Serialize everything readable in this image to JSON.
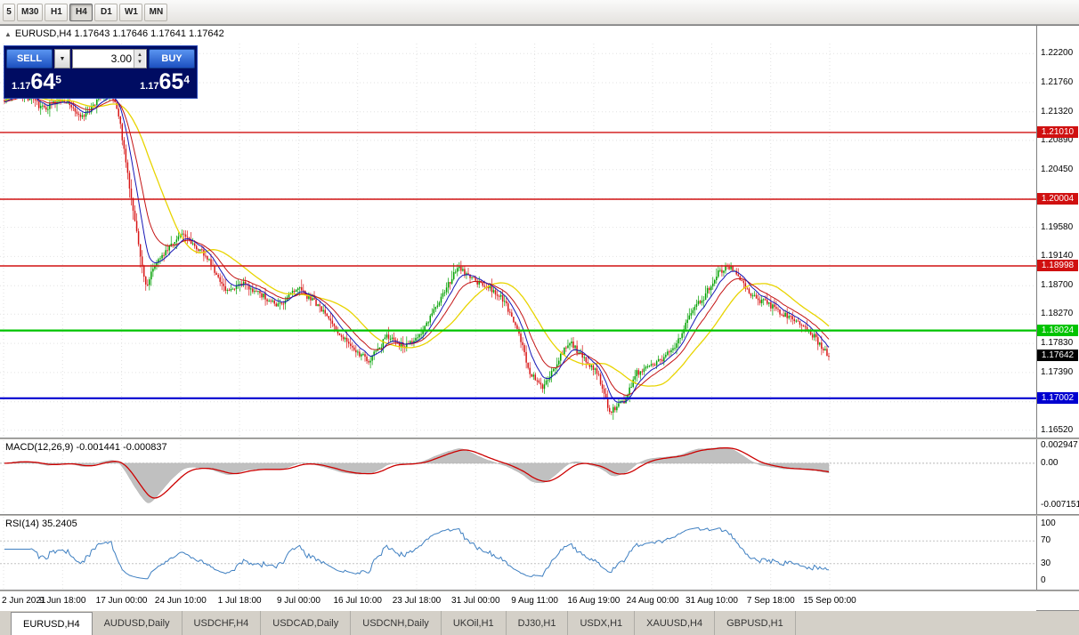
{
  "toolbar": {
    "timeframes": [
      "5",
      "M30",
      "H1",
      "H4",
      "D1",
      "W1",
      "MN"
    ],
    "active": "H4"
  },
  "header": {
    "symbol_line": "EURUSD,H4  1.17643 1.17646 1.17641 1.17642"
  },
  "trade_panel": {
    "sell_label": "SELL",
    "buy_label": "BUY",
    "volume": "3.00",
    "sell_price": {
      "prefix": "1.17",
      "big": "64",
      "sup": "5"
    },
    "buy_price": {
      "prefix": "1.17",
      "big": "65",
      "sup": "4"
    }
  },
  "chart_data": {
    "type": "candlestick",
    "symbol": "EURUSD",
    "timeframe": "H4",
    "title": "EURUSD,H4",
    "ohlc": {
      "open": 1.17643,
      "high": 1.17646,
      "low": 1.17641,
      "close": 1.17642
    },
    "current_price": 1.17642,
    "current_price_label": "1.17642",
    "y_range": [
      1.1641,
      1.2235
    ],
    "y_axis_labels": [
      "1.22200",
      "1.21760",
      "1.21320",
      "1.20890",
      "1.20450",
      "1.20010",
      "1.19580",
      "1.19140",
      "1.18700",
      "1.18270",
      "1.17830",
      "1.17390",
      "1.16950",
      "1.16520"
    ],
    "x_axis_labels": [
      "2 Jun 2021",
      "9 Jun 18:00",
      "17 Jun 00:00",
      "24 Jun 10:00",
      "1 Jul 18:00",
      "9 Jul 00:00",
      "16 Jul 10:00",
      "23 Jul 18:00",
      "31 Jul 00:00",
      "9 Aug 11:00",
      "16 Aug 19:00",
      "24 Aug 00:00",
      "31 Aug 10:00",
      "7 Sep 18:00",
      "15 Sep 00:00"
    ],
    "levels": [
      {
        "price": 1.2101,
        "label": "1.21010",
        "color": "#d01010",
        "width": 1.4,
        "type": "resistance"
      },
      {
        "price": 1.20004,
        "label": "1.20004",
        "color": "#d01010",
        "width": 1.4,
        "type": "resistance"
      },
      {
        "price": 1.18998,
        "label": "1.18998",
        "color": "#d01010",
        "width": 1.4,
        "type": "resistance"
      },
      {
        "price": 1.18024,
        "label": "1.18024",
        "color": "#00c400",
        "width": 2.2,
        "type": "pivot"
      },
      {
        "price": 1.17002,
        "label": "1.17002",
        "color": "#0000d0",
        "width": 2.2,
        "type": "support"
      }
    ],
    "colors": {
      "up": "#00a000",
      "down": "#d81616",
      "ma_fast_blue": "#1616b6",
      "ma_mid_red": "#c41414",
      "ma_slow_yellow": "#e8d400",
      "grid": "#e2e2e2",
      "current_badge": "#000000"
    },
    "moving_average_periods": {
      "blue": 9,
      "red": 18,
      "yellow": 34
    },
    "candle_count": 456,
    "price_path_anchors": [
      [
        0,
        1.215
      ],
      [
        0.022,
        1.216
      ],
      [
        0.049,
        1.2138
      ],
      [
        0.076,
        1.215
      ],
      [
        0.097,
        1.2122
      ],
      [
        0.114,
        1.2148
      ],
      [
        0.13,
        1.2162
      ],
      [
        0.141,
        1.2125
      ],
      [
        0.151,
        1.204
      ],
      [
        0.162,
        1.1955
      ],
      [
        0.173,
        1.1868
      ],
      [
        0.184,
        1.19
      ],
      [
        0.2,
        1.1928
      ],
      [
        0.216,
        1.1948
      ],
      [
        0.232,
        1.1932
      ],
      [
        0.249,
        1.191
      ],
      [
        0.27,
        1.186
      ],
      [
        0.292,
        1.1872
      ],
      [
        0.313,
        1.1856
      ],
      [
        0.335,
        1.184
      ],
      [
        0.357,
        1.1866
      ],
      [
        0.378,
        1.1844
      ],
      [
        0.4,
        1.1812
      ],
      [
        0.422,
        1.1775
      ],
      [
        0.443,
        1.1757
      ],
      [
        0.465,
        1.1792
      ],
      [
        0.486,
        1.1778
      ],
      [
        0.508,
        1.18
      ],
      [
        0.53,
        1.185
      ],
      [
        0.551,
        1.1898
      ],
      [
        0.573,
        1.1876
      ],
      [
        0.589,
        1.1868
      ],
      [
        0.605,
        1.185
      ],
      [
        0.621,
        1.1812
      ],
      [
        0.638,
        1.174
      ],
      [
        0.654,
        1.1718
      ],
      [
        0.67,
        1.1752
      ],
      [
        0.686,
        1.1786
      ],
      [
        0.703,
        1.176
      ],
      [
        0.719,
        1.1742
      ],
      [
        0.735,
        1.168
      ],
      [
        0.751,
        1.1694
      ],
      [
        0.767,
        1.1738
      ],
      [
        0.784,
        1.175
      ],
      [
        0.8,
        1.176
      ],
      [
        0.816,
        1.1782
      ],
      [
        0.832,
        1.183
      ],
      [
        0.848,
        1.185
      ],
      [
        0.865,
        1.189
      ],
      [
        0.881,
        1.19
      ],
      [
        0.897,
        1.187
      ],
      [
        0.913,
        1.185
      ],
      [
        0.93,
        1.184
      ],
      [
        0.946,
        1.1826
      ],
      [
        0.962,
        1.1818
      ],
      [
        0.978,
        1.18
      ],
      [
        0.99,
        1.178
      ],
      [
        1,
        1.1764
      ]
    ]
  },
  "indicators": {
    "macd": {
      "label": "MACD(12,26,9) -0.001441 -0.000837",
      "macd_value": -0.001441,
      "signal_value": -0.000837,
      "params": [
        12,
        26,
        9
      ],
      "axis_labels": [
        "0.002947",
        "0.00",
        "-0.007151"
      ],
      "range": [
        -0.0086,
        0.0039
      ],
      "histogram_color": "#c0c0c0",
      "signal_color": "#cc0000"
    },
    "rsi": {
      "label": "RSI(14) 35.2405",
      "value": 35.2405,
      "period": 14,
      "axis_labels": [
        "100",
        "70",
        "30",
        "0"
      ],
      "levels": [
        70,
        30
      ],
      "line_color": "#3e7fc1"
    }
  },
  "tabs": {
    "active": "EURUSD,H4",
    "items": [
      "EURUSD,H4",
      "AUDUSD,Daily",
      "USDCHF,H4",
      "USDCAD,Daily",
      "USDCNH,Daily",
      "UKOil,H1",
      "DJ30,H1",
      "USDX,H1",
      "XAUUSD,H4",
      "GBPUSD,H1"
    ]
  }
}
